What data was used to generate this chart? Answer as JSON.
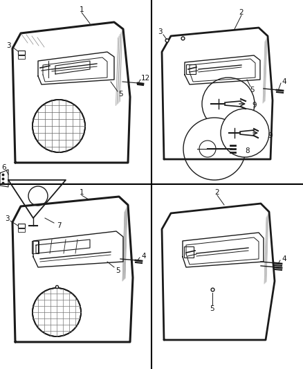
{
  "bg_color": "#ffffff",
  "line_color": "#1a1a1a",
  "label_color": "#111111",
  "divider_color": "#000000",
  "gray": "#888888"
}
